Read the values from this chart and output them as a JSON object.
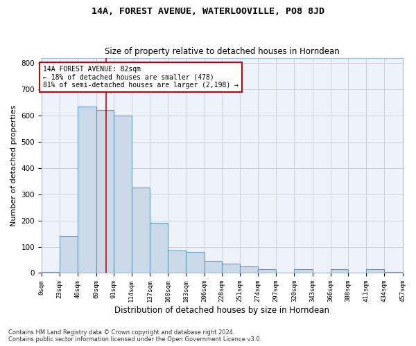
{
  "title": "14A, FOREST AVENUE, WATERLOOVILLE, PO8 8JD",
  "subtitle": "Size of property relative to detached houses in Horndean",
  "xlabel": "Distribution of detached houses by size in Horndean",
  "ylabel": "Number of detached properties",
  "footnote1": "Contains HM Land Registry data © Crown copyright and database right 2024.",
  "footnote2": "Contains public sector information licensed under the Open Government Licence v3.0.",
  "annotation_line1": "14A FOREST AVENUE: 82sqm",
  "annotation_line2": "← 18% of detached houses are smaller (478)",
  "annotation_line3": "81% of semi-detached houses are larger (2,198) →",
  "property_size": 82,
  "bar_color": "#ccd9e8",
  "bar_edge_color": "#6699bb",
  "marker_line_color": "#cc0000",
  "background_color": "#eef2fa",
  "grid_color": "#c5cedd",
  "annotation_box_color": "#ffffff",
  "annotation_border_color": "#cc0000",
  "bin_edges": [
    0,
    23,
    46,
    69,
    91,
    114,
    137,
    160,
    183,
    206,
    228,
    251,
    274,
    297,
    320,
    343,
    366,
    388,
    411,
    434,
    457
  ],
  "bin_labels": [
    "0sqm",
    "23sqm",
    "46sqm",
    "69sqm",
    "91sqm",
    "114sqm",
    "137sqm",
    "160sqm",
    "183sqm",
    "206sqm",
    "228sqm",
    "251sqm",
    "274sqm",
    "297sqm",
    "320sqm",
    "343sqm",
    "366sqm",
    "388sqm",
    "411sqm",
    "434sqm",
    "457sqm"
  ],
  "bar_heights": [
    5,
    140,
    635,
    620,
    600,
    325,
    190,
    85,
    80,
    45,
    35,
    25,
    15,
    0,
    15,
    0,
    15,
    0,
    15,
    5
  ],
  "ylim": [
    0,
    820
  ],
  "yticks": [
    0,
    100,
    200,
    300,
    400,
    500,
    600,
    700,
    800
  ]
}
